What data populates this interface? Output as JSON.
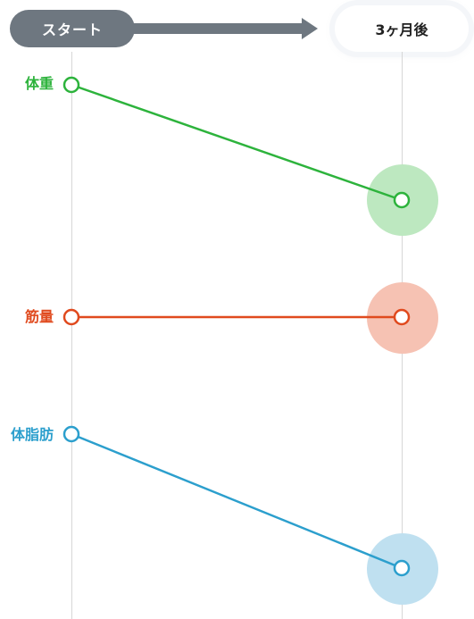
{
  "header": {
    "start_label": "スタート",
    "after_label": "3ヶ月後"
  },
  "metrics": [
    {
      "label": "体重",
      "color": "#2db33c",
      "bubble_color": "#bde8c0"
    },
    {
      "label": "筋量",
      "color": "#e04a1e",
      "bubble_color": "#f6c2b3"
    },
    {
      "label": "体脂肪",
      "color": "#2c9fcd",
      "bubble_color": "#bfe0f0"
    }
  ]
}
